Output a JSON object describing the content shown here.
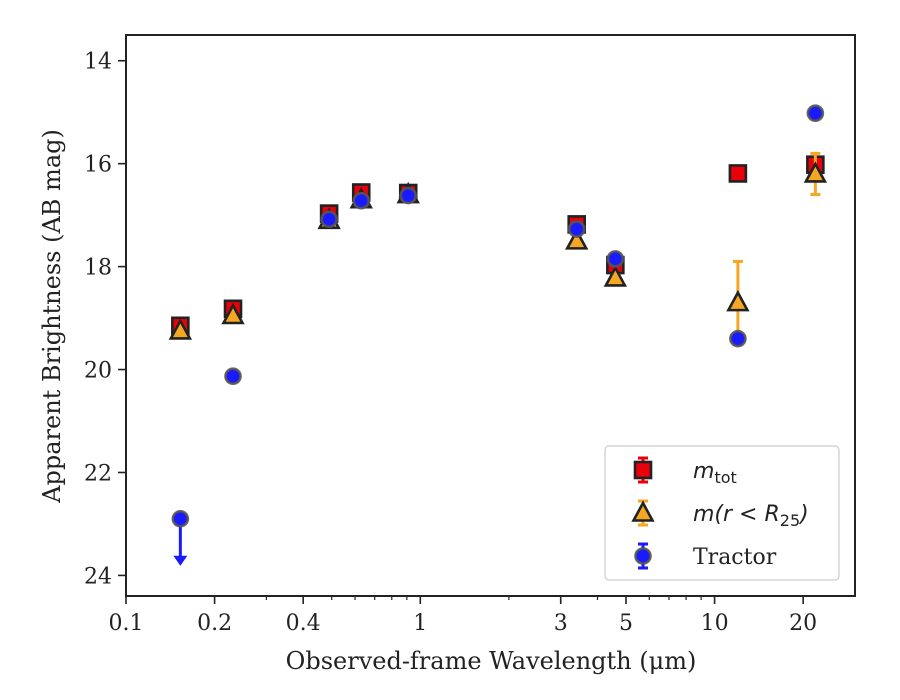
{
  "chart_data": {
    "type": "scatter",
    "xlabel": "Observed-frame Wavelength (μm)",
    "ylabel": "Apparent Brightness (AB mag)",
    "x_scale": "log",
    "y_inverted": true,
    "xlim": [
      0.1,
      30
    ],
    "ylim": [
      24.4,
      13.5
    ],
    "x_ticks": [
      0.1,
      0.2,
      0.4,
      1,
      3,
      5,
      10,
      20
    ],
    "x_tick_labels": [
      "0.1",
      "0.2",
      "0.4",
      "1",
      "3",
      "5",
      "10",
      "20"
    ],
    "y_ticks": [
      14,
      16,
      18,
      20,
      22,
      24
    ],
    "y_tick_labels": [
      "14",
      "16",
      "18",
      "20",
      "22",
      "24"
    ],
    "legend_position": "lower-right",
    "series": [
      {
        "name": "m_tot",
        "legend_label_base": "m",
        "legend_label_sub": "tot",
        "marker": "square",
        "color": "#e8000b",
        "points": [
          {
            "x": 0.153,
            "y": 19.15,
            "err": 0.05
          },
          {
            "x": 0.231,
            "y": 18.82,
            "err": 0.05
          },
          {
            "x": 0.49,
            "y": 16.97,
            "err": 0.05
          },
          {
            "x": 0.63,
            "y": 16.56,
            "err": 0.05
          },
          {
            "x": 0.91,
            "y": 16.57,
            "err": 0.05
          },
          {
            "x": 3.4,
            "y": 17.18,
            "err": 0.05
          },
          {
            "x": 4.6,
            "y": 17.97,
            "err": 0.05
          },
          {
            "x": 12.0,
            "y": 16.19,
            "err": 0.05
          },
          {
            "x": 22.0,
            "y": 16.02,
            "err": 0.15
          }
        ]
      },
      {
        "name": "m(r < R25)",
        "legend_label_base": "m(r < R",
        "legend_label_sub": "25",
        "legend_label_end": ")",
        "marker": "triangle",
        "color": "#f5a623",
        "points": [
          {
            "x": 0.153,
            "y": 19.25,
            "err": 0.05
          },
          {
            "x": 0.231,
            "y": 18.95,
            "err": 0.05
          },
          {
            "x": 0.49,
            "y": 17.1,
            "err": 0.05
          },
          {
            "x": 0.63,
            "y": 16.7,
            "err": 0.05
          },
          {
            "x": 0.91,
            "y": 16.6,
            "err": 0.05
          },
          {
            "x": 3.4,
            "y": 17.5,
            "err": 0.05
          },
          {
            "x": 4.6,
            "y": 18.22,
            "err": 0.05
          },
          {
            "x": 12.0,
            "y": 18.7,
            "err": 0.8
          },
          {
            "x": 22.0,
            "y": 16.2,
            "err": 0.4
          }
        ]
      },
      {
        "name": "Tractor",
        "marker": "circle",
        "color": "#1a1aff",
        "points": [
          {
            "x": 0.153,
            "y": 22.9,
            "upper_limit": true
          },
          {
            "x": 0.231,
            "y": 20.13,
            "err": 0.05
          },
          {
            "x": 0.49,
            "y": 17.08,
            "err": 0.05
          },
          {
            "x": 0.63,
            "y": 16.72,
            "err": 0.05
          },
          {
            "x": 0.91,
            "y": 16.62,
            "err": 0.05
          },
          {
            "x": 3.4,
            "y": 17.27,
            "err": 0.05
          },
          {
            "x": 4.6,
            "y": 17.85,
            "err": 0.05
          },
          {
            "x": 12.0,
            "y": 19.4,
            "err": 0.05
          },
          {
            "x": 22.0,
            "y": 15.02,
            "err": 0.05
          }
        ]
      }
    ]
  }
}
